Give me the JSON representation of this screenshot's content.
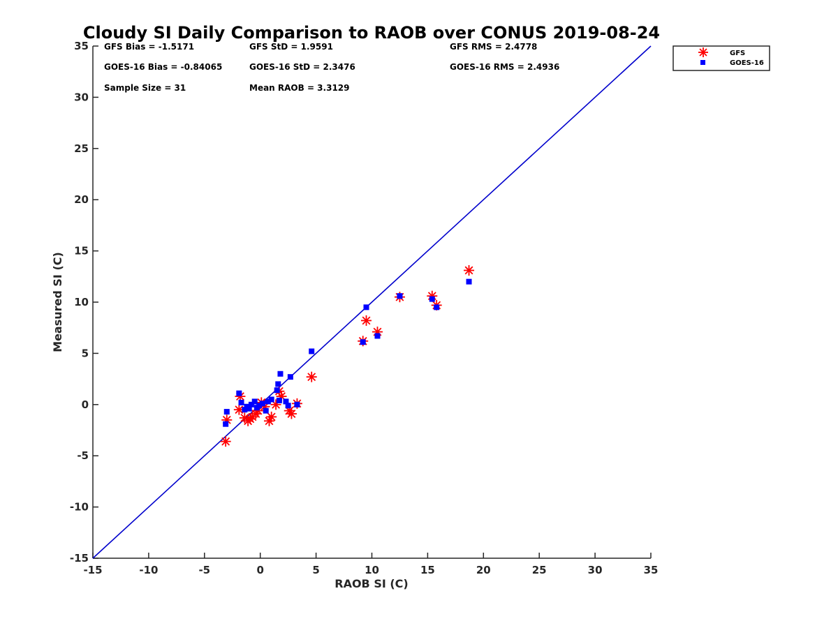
{
  "chart_data": {
    "type": "scatter",
    "title": "Cloudy SI Daily Comparison to RAOB over CONUS 2019-08-24",
    "xlabel": "RAOB SI (C)",
    "ylabel": "Measured SI (C)",
    "xlim": [
      -15,
      35
    ],
    "ylim": [
      -15,
      35
    ],
    "xticks": [
      -15,
      -10,
      -5,
      0,
      5,
      10,
      15,
      20,
      25,
      30,
      35
    ],
    "yticks": [
      -15,
      -10,
      -5,
      0,
      5,
      10,
      15,
      20,
      25,
      30,
      35
    ],
    "xtick_labels": [
      "-15",
      "-10",
      "-5",
      "0",
      "5",
      "10",
      "15",
      "20",
      "25",
      "30",
      "35"
    ],
    "ytick_labels": [
      "-15",
      "-10",
      "-5",
      "0",
      "5",
      "10",
      "15",
      "20",
      "25",
      "30",
      "35"
    ],
    "grid": false,
    "reference_line": {
      "name": "1:1",
      "x": [
        -15,
        35
      ],
      "y": [
        -15,
        35
      ],
      "color": "#0000cc"
    },
    "stats": [
      {
        "label": "GFS Bias = -1.5171"
      },
      {
        "label": "GFS StD = 1.9591"
      },
      {
        "label": "GFS RMS = 2.4778"
      },
      {
        "label": "GOES-16 Bias = -0.84065"
      },
      {
        "label": "GOES-16 StD = 2.3476"
      },
      {
        "label": "GOES-16 RMS = 2.4936"
      },
      {
        "label": "Sample Size = 31"
      },
      {
        "label": "Mean RAOB = 3.3129"
      }
    ],
    "legend_position": "top-right-outside",
    "series": [
      {
        "name": "GFS",
        "marker": "asterisk",
        "color": "#ff0000",
        "points": [
          [
            -3.1,
            -3.6
          ],
          [
            -3.0,
            -1.5
          ],
          [
            -1.9,
            -0.5
          ],
          [
            -1.8,
            0.8
          ],
          [
            -1.4,
            -1.3
          ],
          [
            -1.1,
            -1.6
          ],
          [
            -0.9,
            -1.4
          ],
          [
            -0.7,
            -1.2
          ],
          [
            -0.4,
            -0.9
          ],
          [
            -0.2,
            -0.6
          ],
          [
            0.1,
            0.2
          ],
          [
            0.4,
            -0.2
          ],
          [
            0.8,
            -1.6
          ],
          [
            1.0,
            -1.2
          ],
          [
            1.4,
            0.0
          ],
          [
            1.7,
            1.3
          ],
          [
            1.9,
            0.8
          ],
          [
            2.6,
            -0.6
          ],
          [
            2.8,
            -0.9
          ],
          [
            3.3,
            0.1
          ],
          [
            4.6,
            2.7
          ],
          [
            9.2,
            6.2
          ],
          [
            9.5,
            8.2
          ],
          [
            10.5,
            7.1
          ],
          [
            12.5,
            10.5
          ],
          [
            15.4,
            10.6
          ],
          [
            15.8,
            9.7
          ],
          [
            18.7,
            13.1
          ]
        ]
      },
      {
        "name": "GOES-16",
        "marker": "square",
        "color": "#0000ff",
        "points": [
          [
            -3.1,
            -1.9
          ],
          [
            -3.0,
            -0.7
          ],
          [
            -1.9,
            1.1
          ],
          [
            -1.7,
            0.2
          ],
          [
            -1.4,
            -0.5
          ],
          [
            -1.2,
            -0.2
          ],
          [
            -1.0,
            -0.4
          ],
          [
            -0.8,
            0.0
          ],
          [
            -0.5,
            0.3
          ],
          [
            -0.3,
            -0.3
          ],
          [
            -0.1,
            -0.1
          ],
          [
            0.2,
            0.1
          ],
          [
            0.5,
            -0.6
          ],
          [
            0.7,
            0.3
          ],
          [
            1.0,
            0.5
          ],
          [
            1.5,
            1.4
          ],
          [
            1.6,
            2.0
          ],
          [
            1.7,
            0.4
          ],
          [
            1.8,
            3.0
          ],
          [
            2.3,
            0.3
          ],
          [
            2.5,
            -0.1
          ],
          [
            2.7,
            2.7
          ],
          [
            3.3,
            0.0
          ],
          [
            4.6,
            5.2
          ],
          [
            9.2,
            6.1
          ],
          [
            9.5,
            9.5
          ],
          [
            10.5,
            6.7
          ],
          [
            12.5,
            10.6
          ],
          [
            15.4,
            10.3
          ],
          [
            15.8,
            9.5
          ],
          [
            18.7,
            12.0
          ]
        ]
      }
    ]
  }
}
